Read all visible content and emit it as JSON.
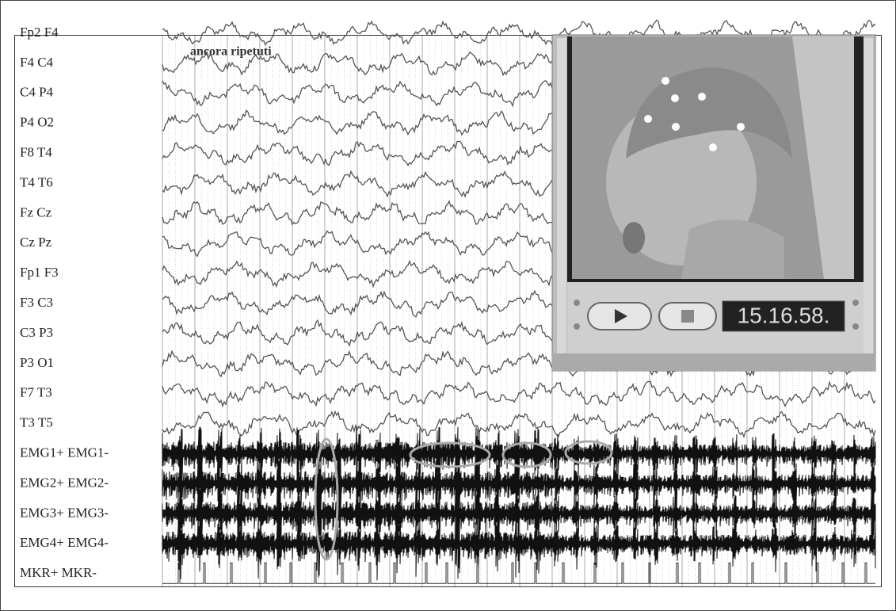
{
  "annotation": "ancora ripetuti",
  "channels": [
    "Fp2 F4",
    "F4 C4",
    "C4 P4",
    "P4 O2",
    "F8 T4",
    "T4 T6",
    "Fz Cz",
    "Cz Pz",
    "Fp1 F3",
    "F3 C3",
    "C3 P3",
    "P3 O1",
    "F7 T3",
    "T3 T5",
    "EMG1+ EMG1-",
    "EMG2+ EMG2-",
    "EMG3+ EMG3-",
    "EMG4+ EMG4-",
    "MKR+ MKR-"
  ],
  "video": {
    "timestamp": "15.16.58."
  }
}
